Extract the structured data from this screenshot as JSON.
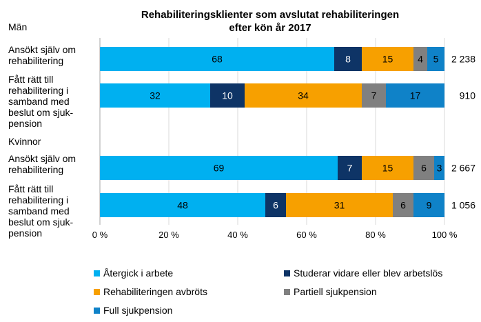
{
  "chart_data": {
    "type": "bar",
    "orientation": "horizontal",
    "stacked": true,
    "title": [
      "Rehabiliteringsklienter som avslutat rehabiliteringen",
      "efter kön år 2017"
    ],
    "xlim": [
      0,
      100
    ],
    "xticks": [
      "0 %",
      "20 %",
      "40 %",
      "60 %",
      "80 %",
      "100 %"
    ],
    "grid": true,
    "legend_position": "bottom",
    "groups": [
      {
        "name": "Män",
        "categories": [
          {
            "label": [
              "Ansökt själv om",
              "rehabilitering"
            ],
            "values": [
              68,
              8,
              15,
              4,
              5
            ],
            "total": "2 238"
          },
          {
            "label": [
              "Fått rätt till",
              "rehabilitering i",
              "samband med",
              "beslut om sjuk-",
              "pension"
            ],
            "values": [
              32,
              10,
              34,
              7,
              17
            ],
            "total": "910"
          }
        ]
      },
      {
        "name": "Kvinnor",
        "categories": [
          {
            "label": [
              "Ansökt själv om",
              "rehabilitering"
            ],
            "values": [
              69,
              7,
              15,
              6,
              3
            ],
            "total": "2 667"
          },
          {
            "label": [
              "Fått rätt till",
              "rehabilitering i",
              "samband med",
              "beslut om sjuk-",
              "pension"
            ],
            "values": [
              48,
              6,
              31,
              6,
              9
            ],
            "total": "1 056"
          }
        ]
      }
    ],
    "series": [
      {
        "name": "Återgick i arbete",
        "color": "#00b0f0",
        "label_color": "#000000"
      },
      {
        "name": "Studerar vidare eller blev arbetslös",
        "color": "#0e3466",
        "label_color": "#ffffff"
      },
      {
        "name": "Rehabiliteringen avbröts",
        "color": "#f7a000",
        "label_color": "#000000"
      },
      {
        "name": "Partiell sjukpension",
        "color": "#808080",
        "label_color": "#000000"
      },
      {
        "name": "Full sjukpension",
        "color": "#0f82c8",
        "label_color": "#000000"
      }
    ]
  }
}
